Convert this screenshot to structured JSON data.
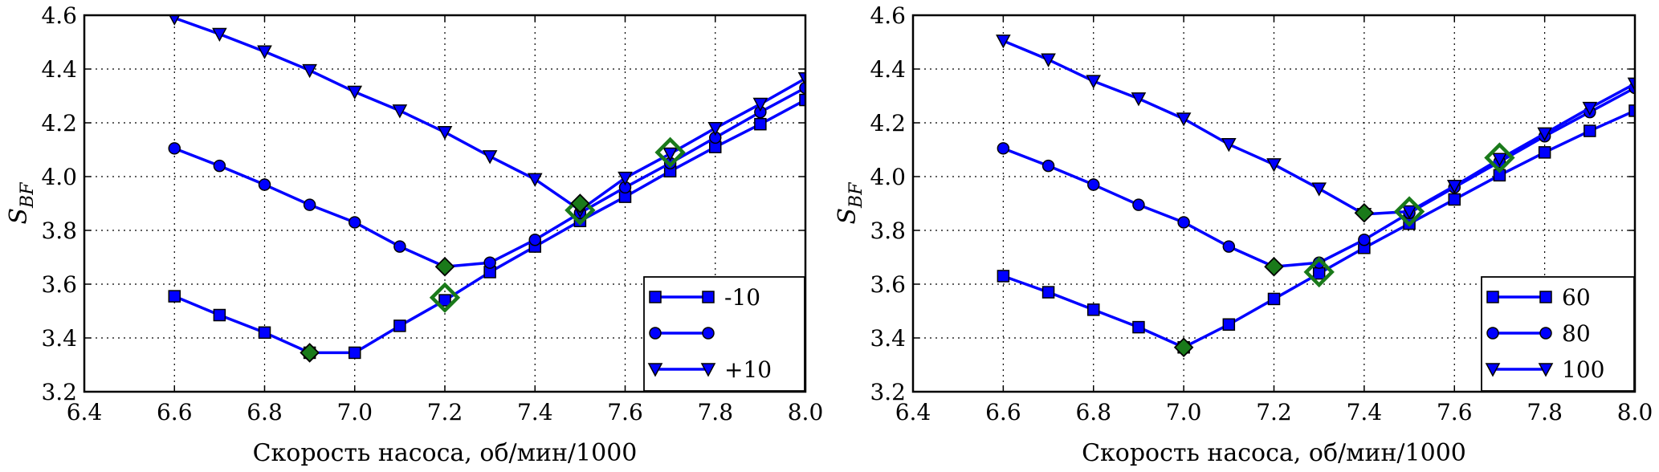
{
  "chart_data": [
    {
      "type": "line",
      "title": "",
      "xlabel": "Скорость насоса, об/мин/1000",
      "ylabel": "S_BF",
      "xlim": [
        6.4,
        8.0
      ],
      "ylim": [
        3.2,
        4.6
      ],
      "xticks": [
        "6.4",
        "6.6",
        "6.8",
        "7.0",
        "7.2",
        "7.4",
        "7.6",
        "7.8",
        "8.0"
      ],
      "yticks": [
        "3.2",
        "3.4",
        "3.6",
        "3.8",
        "4.0",
        "4.2",
        "4.4",
        "4.6"
      ],
      "grid": true,
      "legend_position": "bottom-right",
      "series": [
        {
          "name": "-10",
          "marker": "square",
          "x": [
            6.6,
            6.7,
            6.8,
            6.9,
            7.0,
            7.1,
            7.2,
            7.3,
            7.4,
            7.5,
            7.6,
            7.7,
            7.8,
            7.9,
            8.0
          ],
          "values": [
            3.555,
            3.485,
            3.42,
            3.345,
            3.345,
            3.445,
            3.54,
            3.645,
            3.74,
            3.835,
            3.925,
            4.02,
            4.11,
            4.195,
            4.285
          ]
        },
        {
          "name": "",
          "marker": "circle",
          "x": [
            6.6,
            6.7,
            6.8,
            6.9,
            7.0,
            7.1,
            7.2,
            7.3,
            7.4,
            7.5,
            7.6,
            7.7,
            7.8,
            7.9,
            8.0
          ],
          "values": [
            4.105,
            4.04,
            3.97,
            3.895,
            3.83,
            3.74,
            3.665,
            3.68,
            3.765,
            3.865,
            3.96,
            4.05,
            4.145,
            4.24,
            4.33
          ]
        },
        {
          "name": "+10",
          "marker": "triangle-down",
          "x": [
            6.6,
            6.7,
            6.8,
            6.9,
            7.0,
            7.1,
            7.2,
            7.3,
            7.4,
            7.5,
            7.6,
            7.7,
            7.8,
            7.9,
            8.0
          ],
          "values": [
            4.59,
            4.53,
            4.465,
            4.395,
            4.315,
            4.245,
            4.165,
            4.075,
            3.99,
            3.875,
            3.995,
            4.085,
            4.18,
            4.27,
            4.365
          ]
        }
      ],
      "filled_diamonds": {
        "color": "#1a7a1a",
        "x": [
          6.9,
          7.2,
          7.5
        ],
        "values": [
          3.345,
          3.665,
          3.9
        ]
      },
      "open_diamonds": {
        "color": "#1a7a1a",
        "x": [
          7.2,
          7.5,
          7.7
        ],
        "values": [
          3.55,
          3.875,
          4.09
        ]
      }
    },
    {
      "type": "line",
      "title": "",
      "xlabel": "Скорость насоса, об/мин/1000",
      "ylabel": "S_BF",
      "xlim": [
        6.4,
        8.0
      ],
      "ylim": [
        3.2,
        4.6
      ],
      "xticks": [
        "6.4",
        "6.6",
        "6.8",
        "7.0",
        "7.2",
        "7.4",
        "7.6",
        "7.8",
        "8.0"
      ],
      "yticks": [
        "3.2",
        "3.4",
        "3.6",
        "3.8",
        "4.0",
        "4.2",
        "4.4",
        "4.6"
      ],
      "grid": true,
      "legend_position": "bottom-right",
      "series": [
        {
          "name": "60",
          "marker": "square",
          "x": [
            6.6,
            6.7,
            6.8,
            6.9,
            7.0,
            7.1,
            7.2,
            7.3,
            7.4,
            7.5,
            7.6,
            7.7,
            7.8,
            7.9,
            8.0
          ],
          "values": [
            3.63,
            3.57,
            3.505,
            3.44,
            3.365,
            3.45,
            3.545,
            3.64,
            3.735,
            3.825,
            3.915,
            4.005,
            4.09,
            4.17,
            4.245
          ]
        },
        {
          "name": "80",
          "marker": "circle",
          "x": [
            6.6,
            6.7,
            6.8,
            6.9,
            7.0,
            7.1,
            7.2,
            7.3,
            7.4,
            7.5,
            7.6,
            7.7,
            7.8,
            7.9,
            8.0
          ],
          "values": [
            4.105,
            4.04,
            3.97,
            3.895,
            3.83,
            3.74,
            3.665,
            3.68,
            3.765,
            3.865,
            3.96,
            4.055,
            4.15,
            4.24,
            4.33
          ]
        },
        {
          "name": "100",
          "marker": "triangle-down",
          "x": [
            6.6,
            6.7,
            6.8,
            6.9,
            7.0,
            7.1,
            7.2,
            7.3,
            7.4,
            7.5,
            7.6,
            7.7,
            7.8,
            7.9,
            8.0
          ],
          "values": [
            4.505,
            4.435,
            4.355,
            4.29,
            4.215,
            4.12,
            4.045,
            3.955,
            3.86,
            3.87,
            3.965,
            4.065,
            4.16,
            4.255,
            4.345
          ]
        }
      ],
      "filled_diamonds": {
        "color": "#1a7a1a",
        "x": [
          7.0,
          7.2,
          7.4
        ],
        "values": [
          3.365,
          3.665,
          3.865
        ]
      },
      "open_diamonds": {
        "color": "#1a7a1a",
        "x": [
          7.3,
          7.5,
          7.7
        ],
        "values": [
          3.645,
          3.87,
          4.07
        ]
      }
    }
  ]
}
